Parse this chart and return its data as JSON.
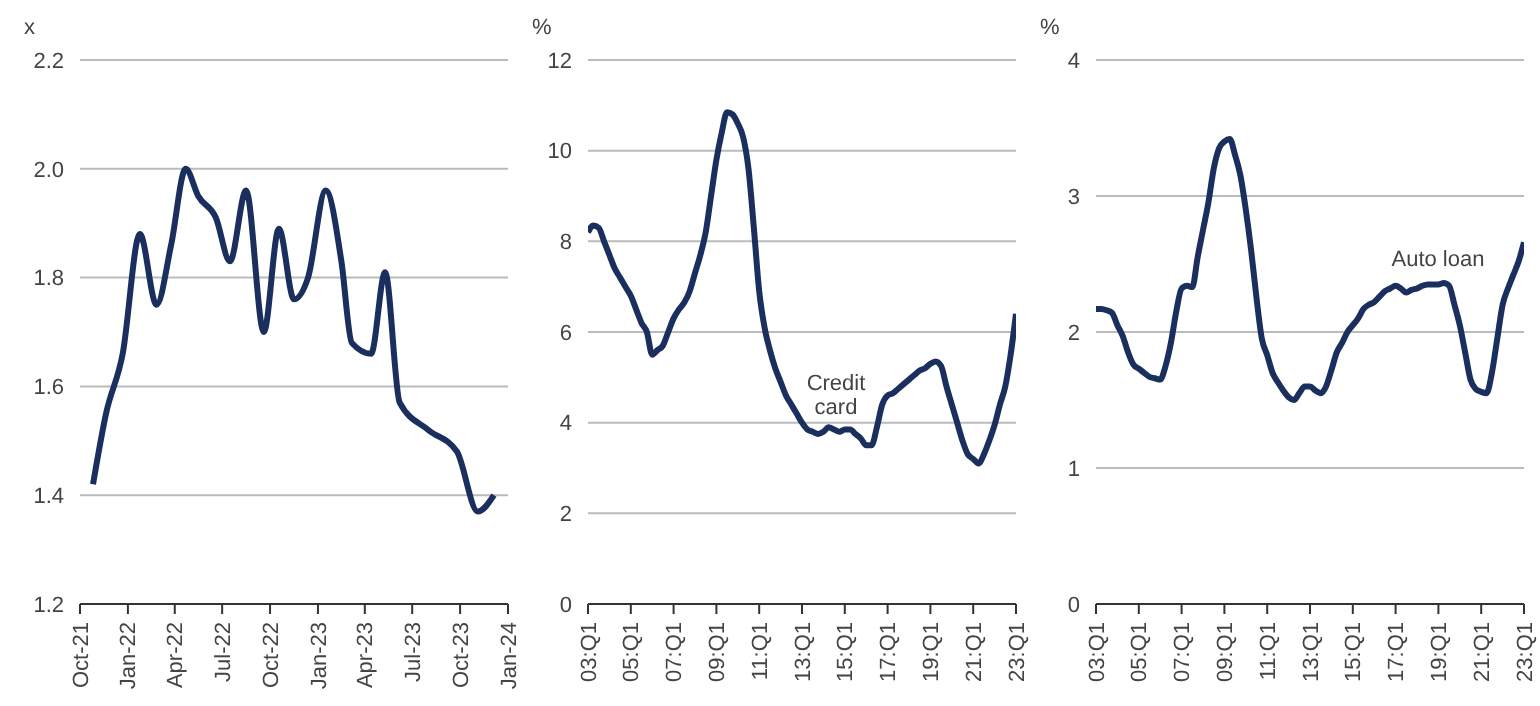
{
  "chart_data": [
    {
      "type": "line",
      "ylabel": "x",
      "grid": "y",
      "marker": "none",
      "line_style": "solid",
      "xlim": [
        "2021-10",
        "2024-01"
      ],
      "ylim": [
        1.2,
        2.2
      ],
      "xticks": [
        {
          "value": "2021-10",
          "label": "Oct-21"
        },
        {
          "value": "2022-01",
          "label": "Jan-22"
        },
        {
          "value": "2022-04",
          "label": "Apr-22"
        },
        {
          "value": "2022-07",
          "label": "Jul-22"
        },
        {
          "value": "2022-10",
          "label": "Oct-22"
        },
        {
          "value": "2023-01",
          "label": "Jan-23"
        },
        {
          "value": "2023-04",
          "label": "Apr-23"
        },
        {
          "value": "2023-07",
          "label": "Jul-23"
        },
        {
          "value": "2023-10",
          "label": "Oct-23"
        },
        {
          "value": "2024-01",
          "label": "Jan-24"
        }
      ],
      "yticks": [
        1.2,
        1.4,
        1.6,
        1.8,
        {
          "value": 2,
          "label": "2.0"
        },
        2.2
      ],
      "x": [
        "2021-10-26",
        "2021-11-20",
        "2021-12-22",
        "2022-01-24",
        "2022-02-25",
        "2022-03-25",
        "2022-04-22",
        "2022-05-16",
        "2022-06-19",
        "2022-07-16",
        "2022-08-16",
        "2022-09-19",
        "2022-10-18",
        "2022-11-16",
        "2022-12-13",
        "2023-01-16",
        "2023-02-15",
        "2023-03-07",
        "2023-04-13",
        "2023-05-10",
        "2023-06-07",
        "2023-08-01",
        "2023-09-25",
        "2023-11-04",
        "2023-12-05"
      ],
      "series": [
        {
          "color": "#1b2f5e",
          "values": [
            1.42,
            1.55,
            1.66,
            1.88,
            1.75,
            1.86,
            2.0,
            1.95,
            1.91,
            1.83,
            1.96,
            1.7,
            1.89,
            1.76,
            1.8,
            1.96,
            1.83,
            1.68,
            1.66,
            1.81,
            1.57,
            1.52,
            1.48,
            1.37,
            1.4
          ]
        }
      ]
    },
    {
      "type": "line",
      "ylabel": "%",
      "grid": "y",
      "marker": "none",
      "line_style": "solid",
      "ylim": [
        0,
        12
      ],
      "yticks": [
        0,
        2,
        4,
        6,
        8,
        10,
        12
      ],
      "categories": [
        "03:Q1",
        null,
        null,
        null,
        null,
        null,
        null,
        null,
        "05:Q1",
        null,
        null,
        null,
        null,
        null,
        null,
        null,
        "07:Q1",
        null,
        null,
        null,
        null,
        null,
        null,
        null,
        "09:Q1",
        null,
        null,
        null,
        null,
        null,
        null,
        null,
        "11:Q1",
        null,
        null,
        null,
        null,
        null,
        null,
        null,
        "13:Q1",
        null,
        null,
        null,
        null,
        null,
        null,
        null,
        "15:Q1",
        null,
        null,
        null,
        null,
        null,
        null,
        null,
        "17:Q1",
        null,
        null,
        null,
        null,
        null,
        null,
        null,
        "19:Q1",
        null,
        null,
        null,
        null,
        null,
        null,
        null,
        "21:Q1",
        null,
        null,
        null,
        null,
        null,
        null,
        null,
        "23:Q1"
      ],
      "series": [
        {
          "color": "#1b2f5e",
          "values": [
            8.2,
            8.35,
            8.3,
            8.0,
            7.7,
            7.4,
            7.2,
            7.0,
            6.8,
            6.5,
            6.2,
            6.0,
            5.5,
            5.6,
            5.7,
            6.0,
            6.3,
            6.5,
            6.65,
            6.9,
            7.3,
            7.7,
            8.2,
            9.0,
            9.8,
            10.4,
            10.85,
            10.8,
            10.6,
            10.3,
            9.6,
            8.3,
            6.9,
            6.1,
            5.6,
            5.2,
            4.9,
            4.6,
            4.4,
            4.2,
            4.0,
            3.85,
            3.8,
            3.75,
            3.8,
            3.9,
            3.85,
            3.8,
            3.85,
            3.85,
            3.75,
            3.65,
            3.5,
            3.5,
            3.9,
            4.4,
            4.6,
            4.65,
            4.75,
            4.85,
            4.95,
            5.05,
            5.15,
            5.2,
            5.3,
            5.35,
            5.25,
            4.8,
            4.4,
            4.0,
            3.6,
            3.3,
            3.2,
            3.1,
            3.3,
            3.6,
            3.95,
            4.4,
            4.8,
            5.5,
            6.4
          ]
        }
      ],
      "annotations": [
        "Credit card"
      ]
    },
    {
      "type": "line",
      "ylabel": "%",
      "grid": "y",
      "marker": "none",
      "line_style": "solid",
      "ylim": [
        0,
        4
      ],
      "yticks": [
        0,
        1,
        2,
        3,
        4
      ],
      "categories": [
        "03:Q1",
        null,
        null,
        null,
        null,
        null,
        null,
        null,
        "05:Q1",
        null,
        null,
        null,
        null,
        null,
        null,
        null,
        "07:Q1",
        null,
        null,
        null,
        null,
        null,
        null,
        null,
        "09:Q1",
        null,
        null,
        null,
        null,
        null,
        null,
        null,
        "11:Q1",
        null,
        null,
        null,
        null,
        null,
        null,
        null,
        "13:Q1",
        null,
        null,
        null,
        null,
        null,
        null,
        null,
        "15:Q1",
        null,
        null,
        null,
        null,
        null,
        null,
        null,
        "17:Q1",
        null,
        null,
        null,
        null,
        null,
        null,
        null,
        "19:Q1",
        null,
        null,
        null,
        null,
        null,
        null,
        null,
        "21:Q1",
        null,
        null,
        null,
        null,
        null,
        null,
        null,
        "23:Q1"
      ],
      "series": [
        {
          "color": "#1b2f5e",
          "values": [
            2.17,
            2.17,
            2.16,
            2.14,
            2.05,
            1.97,
            1.85,
            1.76,
            1.73,
            1.7,
            1.67,
            1.66,
            1.65,
            1.75,
            1.92,
            2.15,
            2.32,
            2.34,
            2.33,
            2.55,
            2.75,
            2.95,
            3.2,
            3.35,
            3.4,
            3.42,
            3.3,
            3.15,
            2.9,
            2.6,
            2.25,
            1.95,
            1.83,
            1.7,
            1.63,
            1.57,
            1.52,
            1.5,
            1.55,
            1.6,
            1.6,
            1.57,
            1.55,
            1.6,
            1.72,
            1.85,
            1.92,
            2.0,
            2.05,
            2.1,
            2.17,
            2.2,
            2.22,
            2.26,
            2.3,
            2.32,
            2.34,
            2.32,
            2.29,
            2.31,
            2.32,
            2.34,
            2.35,
            2.35,
            2.35,
            2.36,
            2.34,
            2.2,
            2.05,
            1.85,
            1.65,
            1.58,
            1.56,
            1.55,
            1.7,
            1.95,
            2.2,
            2.32,
            2.42,
            2.52,
            2.66
          ]
        }
      ],
      "annotations": [
        "Auto loan"
      ]
    }
  ]
}
